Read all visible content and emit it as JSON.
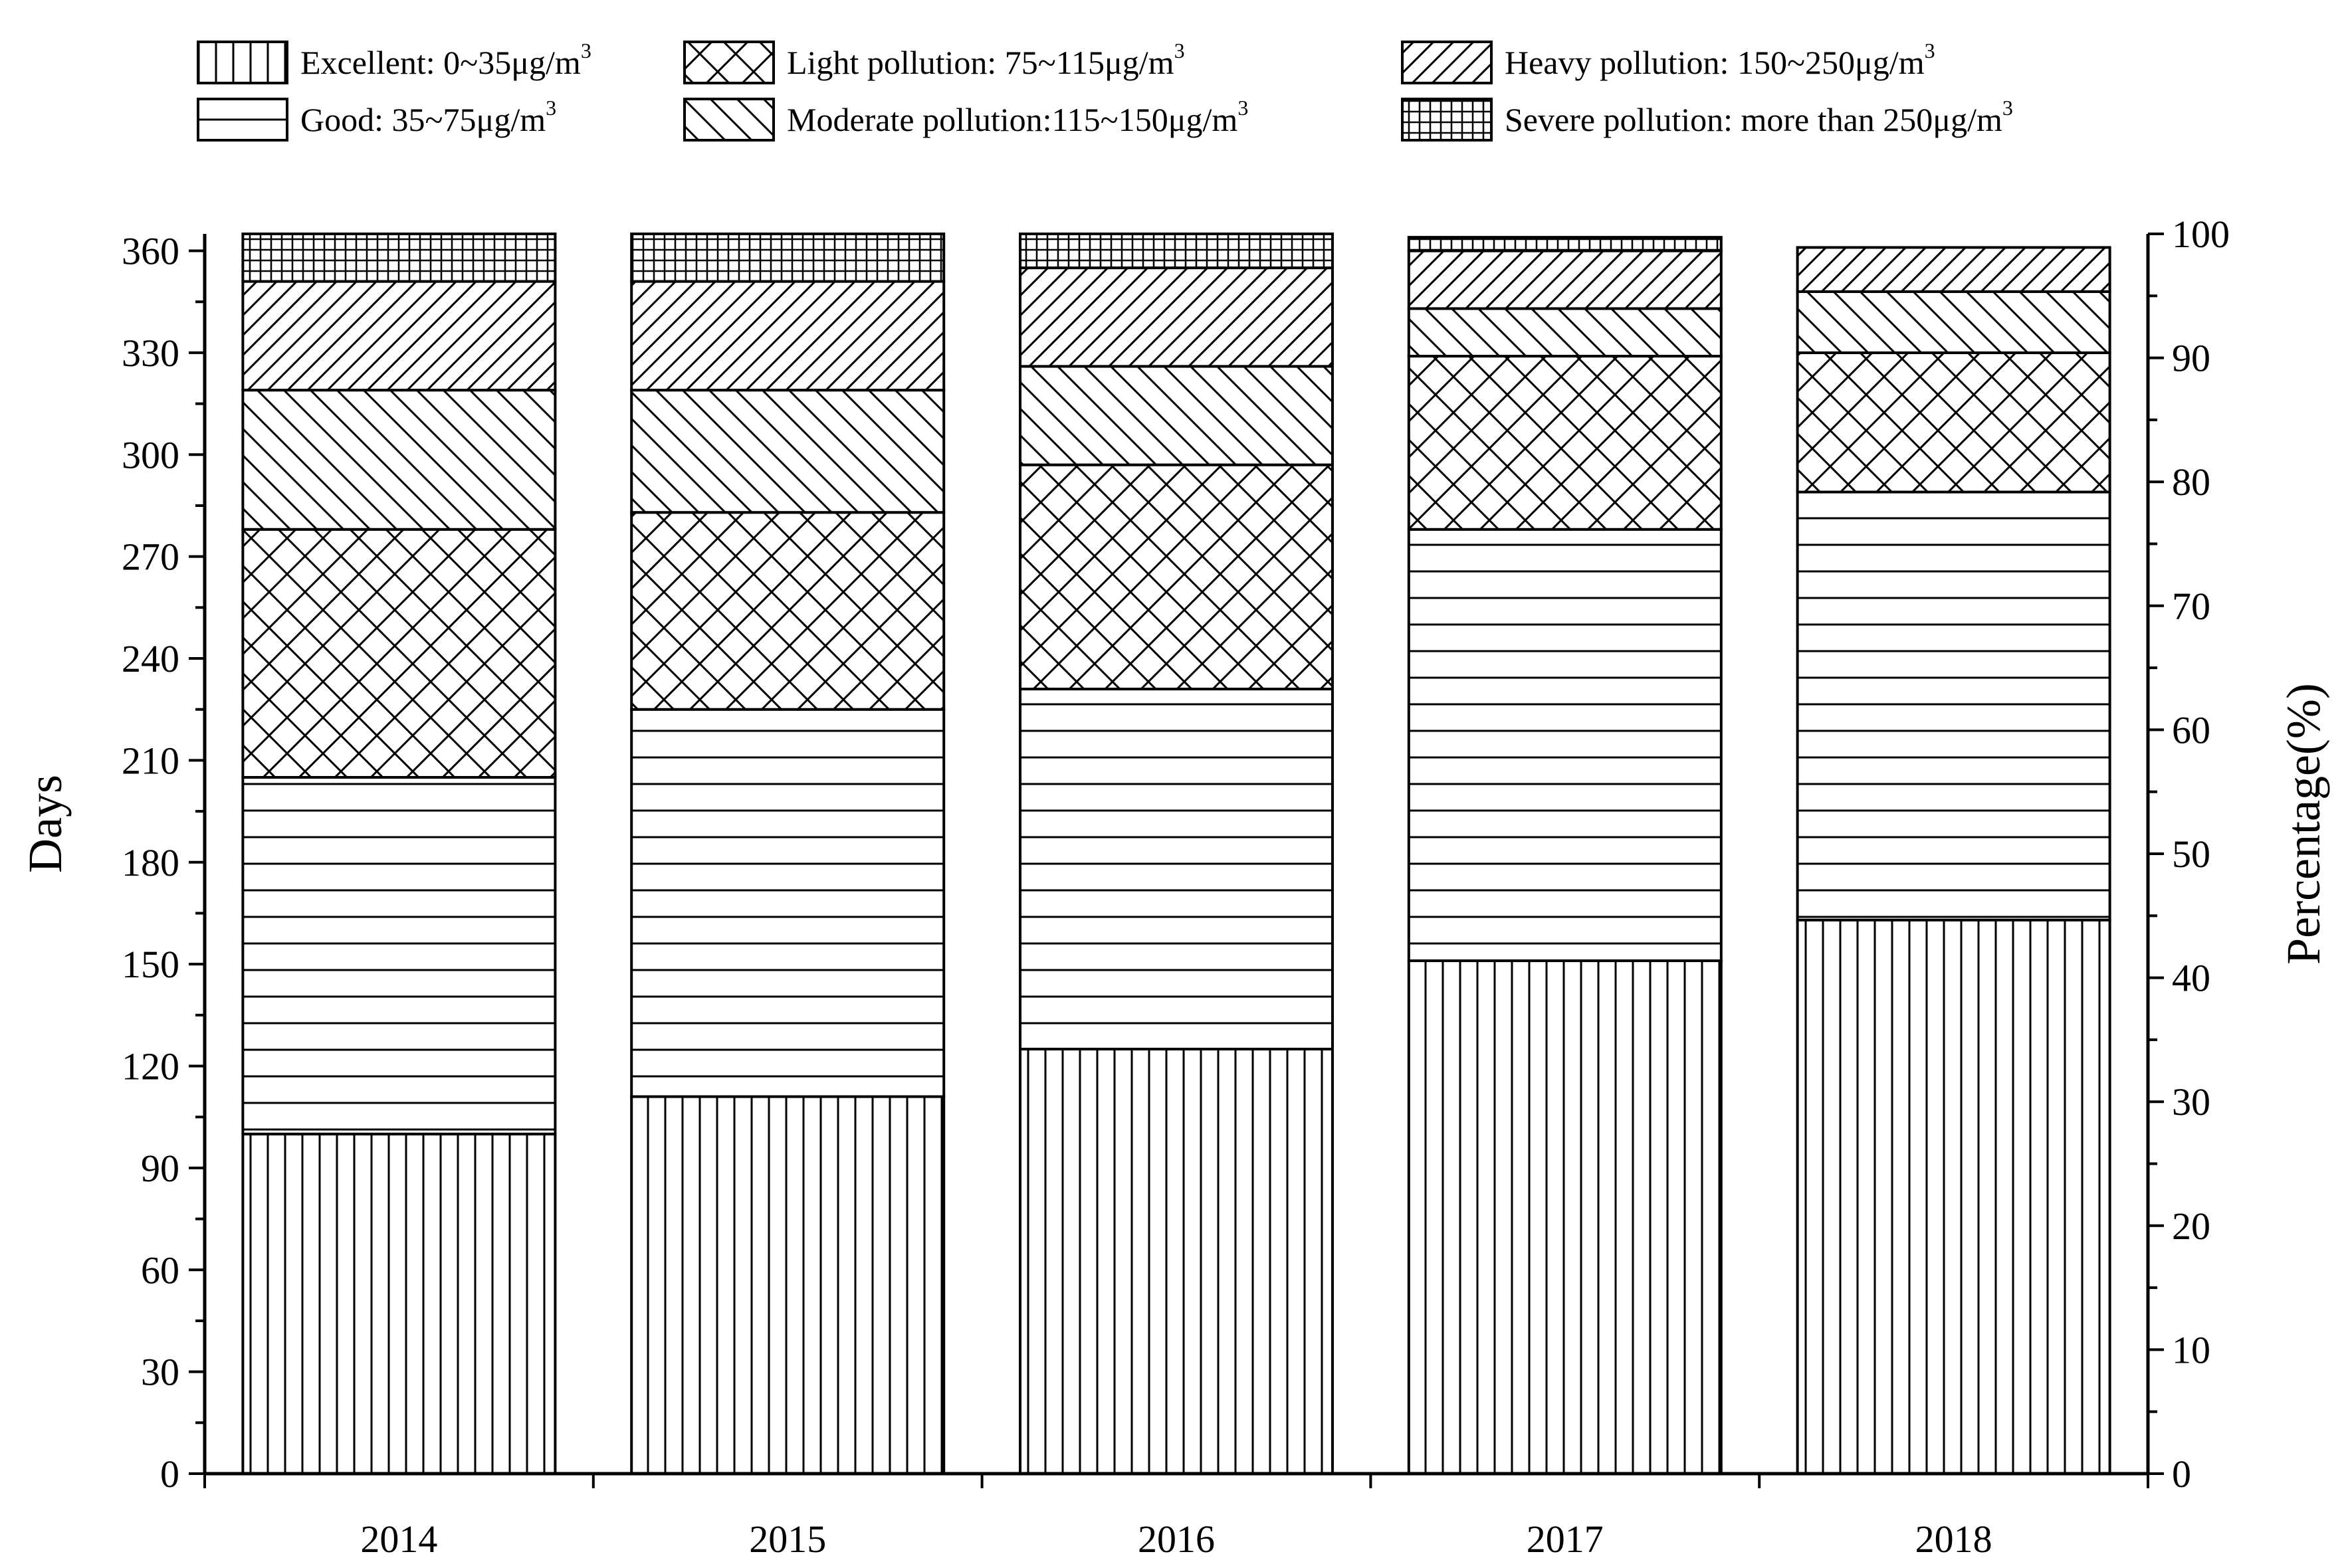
{
  "chart_data": {
    "type": "bar",
    "stacked": true,
    "categories": [
      "2014",
      "2015",
      "2016",
      "2017",
      "2018"
    ],
    "series": [
      {
        "name": "Excellent: 0~35μg/m",
        "unit_sup": "3",
        "pattern": "vertical",
        "values": [
          100,
          111,
          125,
          151,
          163
        ]
      },
      {
        "name": "Good: 35~75μg/m",
        "unit_sup": "3",
        "pattern": "horizontal",
        "values": [
          105,
          114,
          106,
          127,
          126
        ]
      },
      {
        "name": "Light pollution: 75~115μg/m",
        "unit_sup": "3",
        "pattern": "crosshatch",
        "values": [
          73,
          58,
          66,
          51,
          41
        ]
      },
      {
        "name": "Moderate pollution:115~150μg/m",
        "unit_sup": "3",
        "pattern": "backslash",
        "values": [
          41,
          36,
          29,
          14,
          18
        ]
      },
      {
        "name": "Heavy pollution: 150~250μg/m",
        "unit_sup": "3",
        "pattern": "forwardslash",
        "values": [
          32,
          32,
          29,
          17,
          13
        ]
      },
      {
        "name": "Severe pollution: more than 250μg/m",
        "unit_sup": "3",
        "pattern": "grid",
        "values": [
          14,
          14,
          10,
          4,
          0
        ]
      }
    ],
    "xlabel": "",
    "ylabel": "Days",
    "ylabel_right": "Percentage(%)",
    "ylim": [
      0,
      365
    ],
    "yticks": [
      0,
      30,
      60,
      90,
      120,
      150,
      180,
      210,
      240,
      270,
      300,
      330,
      360
    ],
    "ylim_right": [
      0,
      100
    ],
    "yticks_right": [
      0,
      10,
      20,
      30,
      40,
      50,
      60,
      70,
      80,
      90,
      100
    ],
    "legend_position": "top",
    "grid": false,
    "bar_fill": "#ffffff",
    "line_color": "#000000"
  }
}
